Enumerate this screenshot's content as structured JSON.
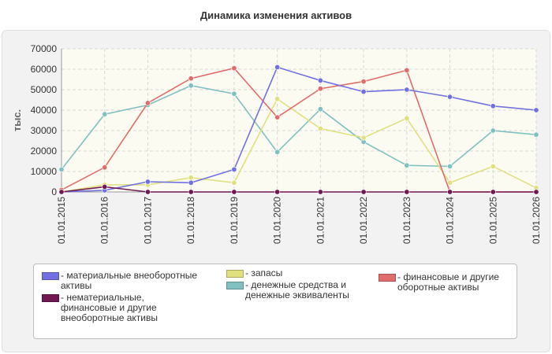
{
  "chart_data": {
    "type": "line",
    "title": "Динамика изменения активов",
    "ylabel": "тыс.",
    "xlabel": "",
    "ylim": [
      0,
      70000
    ],
    "yticks": [
      0,
      10000,
      20000,
      30000,
      40000,
      50000,
      60000,
      70000
    ],
    "grid": true,
    "legend_position": "bottom",
    "categories": [
      "01.01.2015",
      "01.01.2016",
      "01.01.2017",
      "01.01.2018",
      "01.01.2019",
      "01.01.2020",
      "01.01.2021",
      "01.01.2022",
      "01.01.2023",
      "01.01.2024",
      "01.01.2025",
      "01.01.2026"
    ],
    "series": [
      {
        "name": "- материальные внеоборотные активы",
        "color": "#7070e0",
        "values": [
          0,
          800,
          5000,
          4500,
          11000,
          61000,
          54500,
          49000,
          50000,
          46500,
          42000,
          40000
        ]
      },
      {
        "name": "- нематериальные, финансовые и другие внеоборотные активы",
        "color": "#701850",
        "values": [
          0,
          2500,
          0,
          0,
          0,
          0,
          0,
          0,
          0,
          0,
          0,
          0
        ]
      },
      {
        "name": "- запасы",
        "color": "#e0e080",
        "values": [
          0,
          3500,
          3500,
          7000,
          4500,
          45500,
          31000,
          26500,
          36000,
          4500,
          12500,
          2000
        ]
      },
      {
        "name": "- денежные средства и денежные эквиваленты",
        "color": "#80c0c0",
        "values": [
          11000,
          38000,
          42500,
          52000,
          48000,
          19500,
          40500,
          24500,
          13000,
          12500,
          30000,
          28000
        ]
      },
      {
        "name": "- финансовые и другие оборотные активы",
        "color": "#e06c6c",
        "values": [
          1000,
          12000,
          43500,
          55500,
          60500,
          36500,
          50500,
          54000,
          59500,
          0,
          0,
          0
        ]
      }
    ]
  }
}
